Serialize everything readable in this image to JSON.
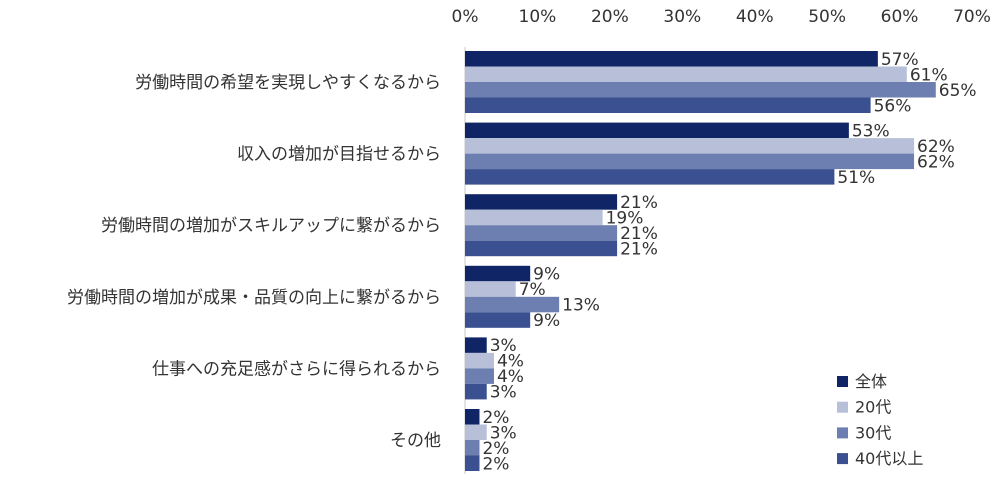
{
  "chart_data": {
    "type": "bar",
    "orientation": "horizontal",
    "title": "",
    "xlabel": "",
    "ylabel": "",
    "xlim": [
      0,
      70
    ],
    "x_ticks": [
      "0%",
      "10%",
      "20%",
      "30%",
      "40%",
      "50%",
      "60%",
      "70%"
    ],
    "x_axis_position": "top",
    "grid": false,
    "legend_position": "bottom-right",
    "categories": [
      "労働時間の希望を実現しやすくなるから",
      "収入の増加が目指せるから",
      "労働時間の増加がスキルアップに繋がるから",
      "労働時間の増加が成果・品質の向上に繋がるから",
      "仕事への充足感がさらに得られるから",
      "その他"
    ],
    "value_suffix": "%",
    "series": [
      {
        "name": "全体",
        "color": "#0f2566",
        "values": [
          57,
          53,
          21,
          9,
          3,
          2
        ]
      },
      {
        "name": "20代",
        "color": "#b7c0d8",
        "values": [
          61,
          62,
          19,
          7,
          4,
          3
        ]
      },
      {
        "name": "30代",
        "color": "#6d7fb0",
        "values": [
          65,
          62,
          21,
          13,
          4,
          2
        ]
      },
      {
        "name": "40代以上",
        "color": "#3a5090",
        "values": [
          56,
          51,
          21,
          9,
          3,
          2
        ]
      }
    ]
  }
}
